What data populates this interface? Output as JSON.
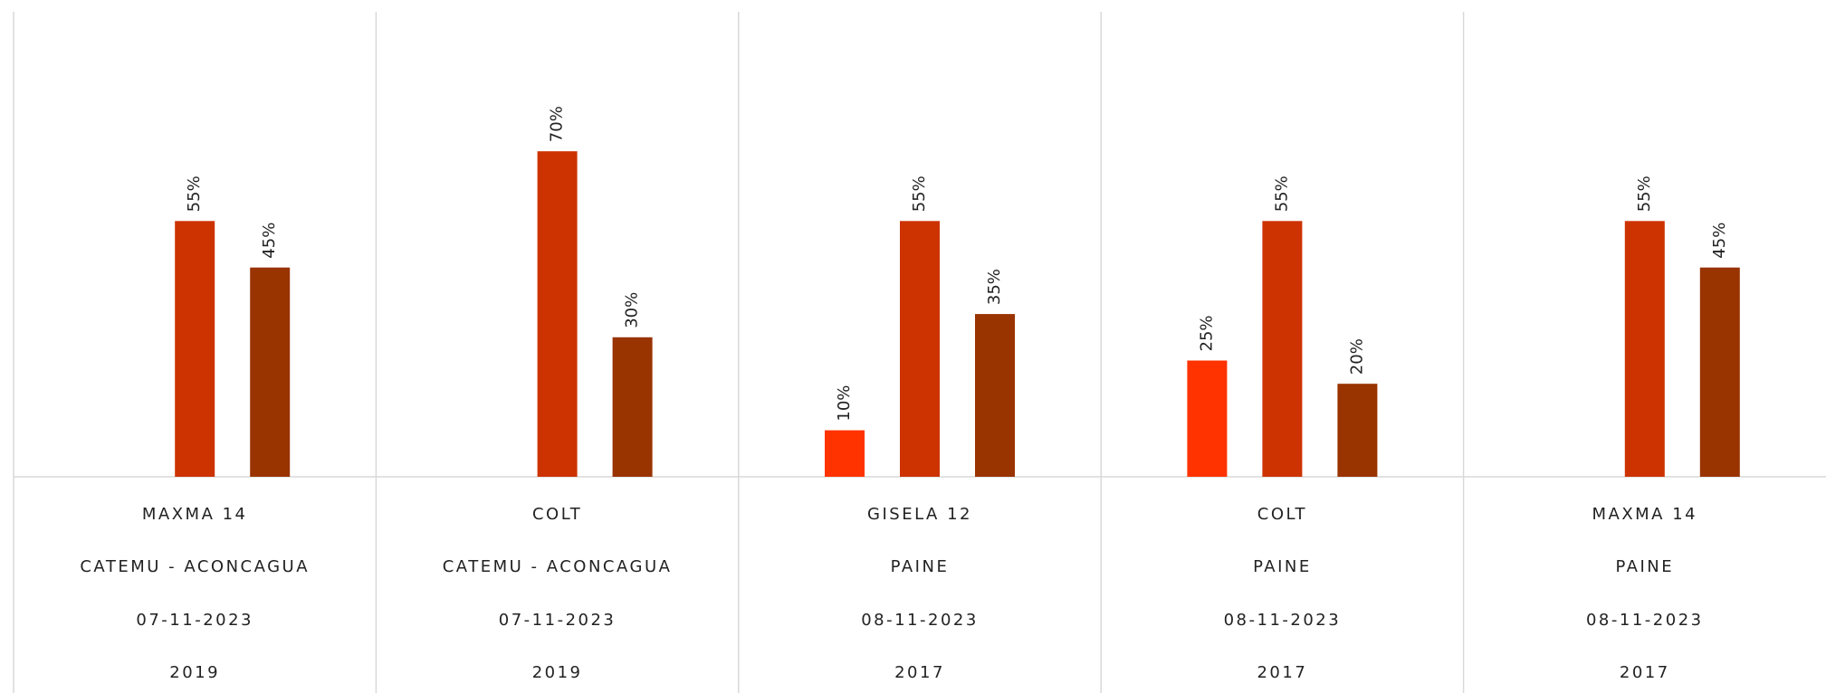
{
  "chart_data": {
    "type": "bar",
    "categories": [
      [
        "MAXMA 14",
        "CATEMU - ACONCAGUA",
        "07-11-2023",
        "2019"
      ],
      [
        "COLT",
        "CATEMU - ACONCAGUA",
        "07-11-2023",
        "2019"
      ],
      [
        "GISELA 12",
        "PAINE",
        "08-11-2023",
        "2017"
      ],
      [
        "COLT",
        "PAINE",
        "08-11-2023",
        "2017"
      ],
      [
        "MAXMA 14",
        "PAINE",
        "08-11-2023",
        "2017"
      ]
    ],
    "series": [
      {
        "color": "#ff3300",
        "values": [
          null,
          null,
          10,
          25,
          null
        ],
        "value_labels": [
          null,
          null,
          "10%",
          "25%",
          null
        ]
      },
      {
        "color": "#cc3300",
        "values": [
          55,
          70,
          55,
          55,
          55
        ],
        "value_labels": [
          "55%",
          "70%",
          "55%",
          "55%",
          "55%"
        ]
      },
      {
        "color": "#993300",
        "values": [
          45,
          30,
          35,
          20,
          45
        ],
        "value_labels": [
          "45%",
          "30%",
          "35%",
          "20%",
          "45%"
        ]
      }
    ],
    "ylim": [
      0,
      100
    ]
  }
}
